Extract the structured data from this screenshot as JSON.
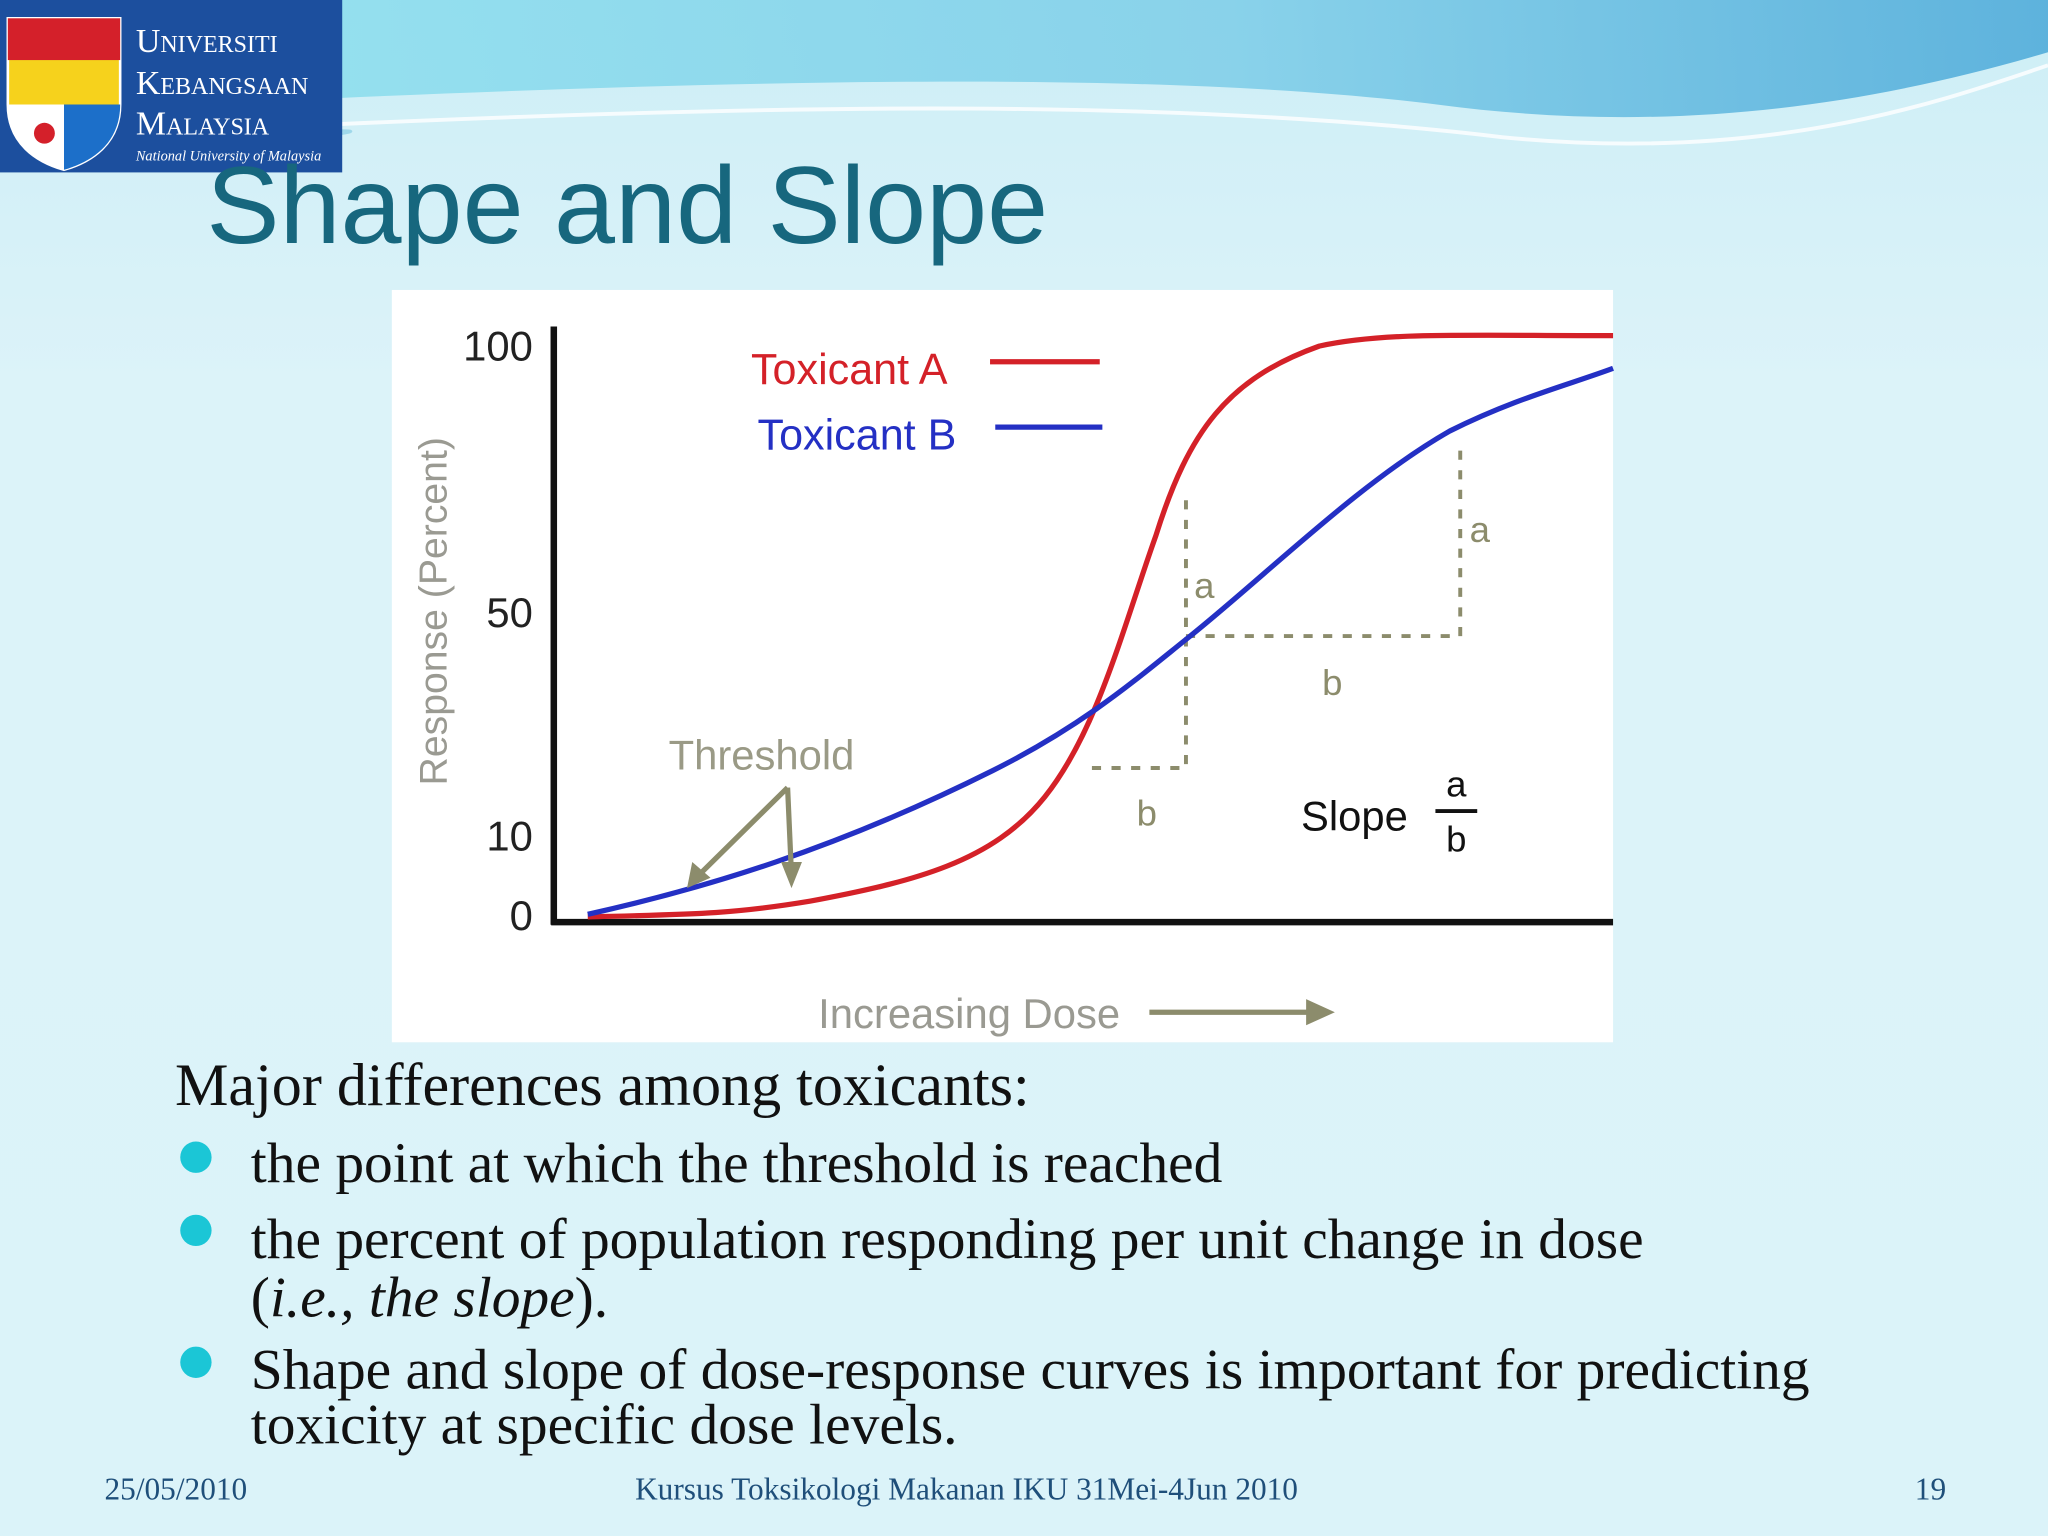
{
  "logo": {
    "lines": [
      "Universiti",
      "Kebangsaan",
      "Malaysia"
    ],
    "tagline": "National University of Malaysia"
  },
  "title": "Shape and Slope",
  "figure": {
    "y_axis_label": "Response (Percent)",
    "y_ticks": [
      "100",
      "50",
      "10",
      "0"
    ],
    "legend": [
      "Toxicant A",
      "Toxicant B"
    ],
    "threshold_label": "Threshold",
    "segment_labels": [
      "a",
      "b",
      "a",
      "b"
    ],
    "slope_label": "Slope",
    "slope_numerator": "a",
    "slope_denominator": "b",
    "x_axis_label": "Increasing Dose"
  },
  "body": {
    "heading": "Major differences among toxicants:",
    "bullets": [
      {
        "lines": [
          "the point at which the threshold is reached"
        ]
      },
      {
        "lines": [
          "the percent of population responding per unit change in dose"
        ],
        "tail": [
          "(",
          "i.e., the slope",
          ")."
        ]
      },
      {
        "lines": [
          "Shape and slope of dose-response curves is important for predicting",
          "toxicity at specific dose levels."
        ]
      }
    ]
  },
  "footer": {
    "date": "25/05/2010",
    "course": "Kursus Toksikologi Makanan IKU 31Mei-4Jun 2010",
    "page": "19"
  }
}
